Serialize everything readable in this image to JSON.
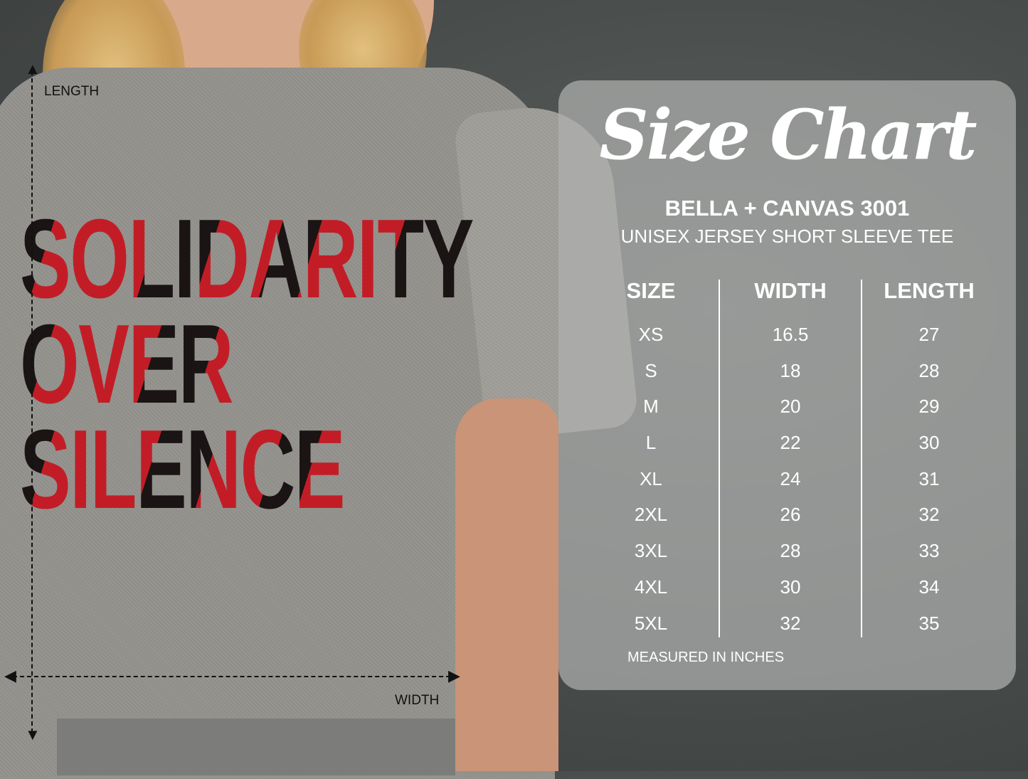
{
  "shirt_print": {
    "lines": [
      "SOLIDARITY",
      "OVER",
      "SILENCE"
    ],
    "colors": {
      "red": "#c21d26",
      "black": "#1a1414"
    }
  },
  "measure": {
    "length_label": "LENGTH",
    "width_label": "WIDTH"
  },
  "size_chart": {
    "title": "Size Chart",
    "brand": "BELLA + CANVAS 3001",
    "model": "UNISEX JERSEY SHORT SLEEVE TEE",
    "headers": [
      "SIZE",
      "WIDTH",
      "LENGTH"
    ],
    "sizes": [
      "XS",
      "S",
      "M",
      "L",
      "XL",
      "2XL",
      "3XL",
      "4XL",
      "5XL"
    ],
    "widths": [
      "16.5",
      "18",
      "20",
      "22",
      "24",
      "26",
      "28",
      "30",
      "32"
    ],
    "lengths": [
      "27",
      "28",
      "29",
      "30",
      "31",
      "32",
      "33",
      "34",
      "35"
    ],
    "note": "MEASURED IN INCHES"
  }
}
